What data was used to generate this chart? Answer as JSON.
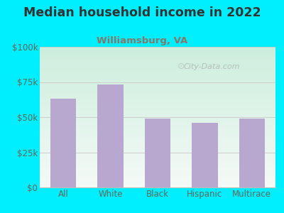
{
  "title": "Median household income in 2022",
  "subtitle": "Williamsburg, VA",
  "categories": [
    "All",
    "White",
    "Black",
    "Hispanic",
    "Multirace"
  ],
  "values": [
    63000,
    73000,
    49000,
    46000,
    49000
  ],
  "bar_color": "#b8a8d0",
  "title_fontsize": 12.5,
  "subtitle_fontsize": 9.5,
  "tick_label_fontsize": 8.5,
  "ytick_labels": [
    "$0",
    "$25k",
    "$50k",
    "$75k",
    "$100k"
  ],
  "ytick_values": [
    0,
    25000,
    50000,
    75000,
    100000
  ],
  "ylim": [
    0,
    100000
  ],
  "bg_outer": "#00efff",
  "bg_plot_topleft": "#cceedd",
  "bg_plot_bottomright": "#f5faf7",
  "watermark": "City-Data.com",
  "title_color": "#333333",
  "subtitle_color": "#887766",
  "tick_color": "#666655",
  "grid_color": "#cccccc",
  "spine_color": "#bbbbbb"
}
